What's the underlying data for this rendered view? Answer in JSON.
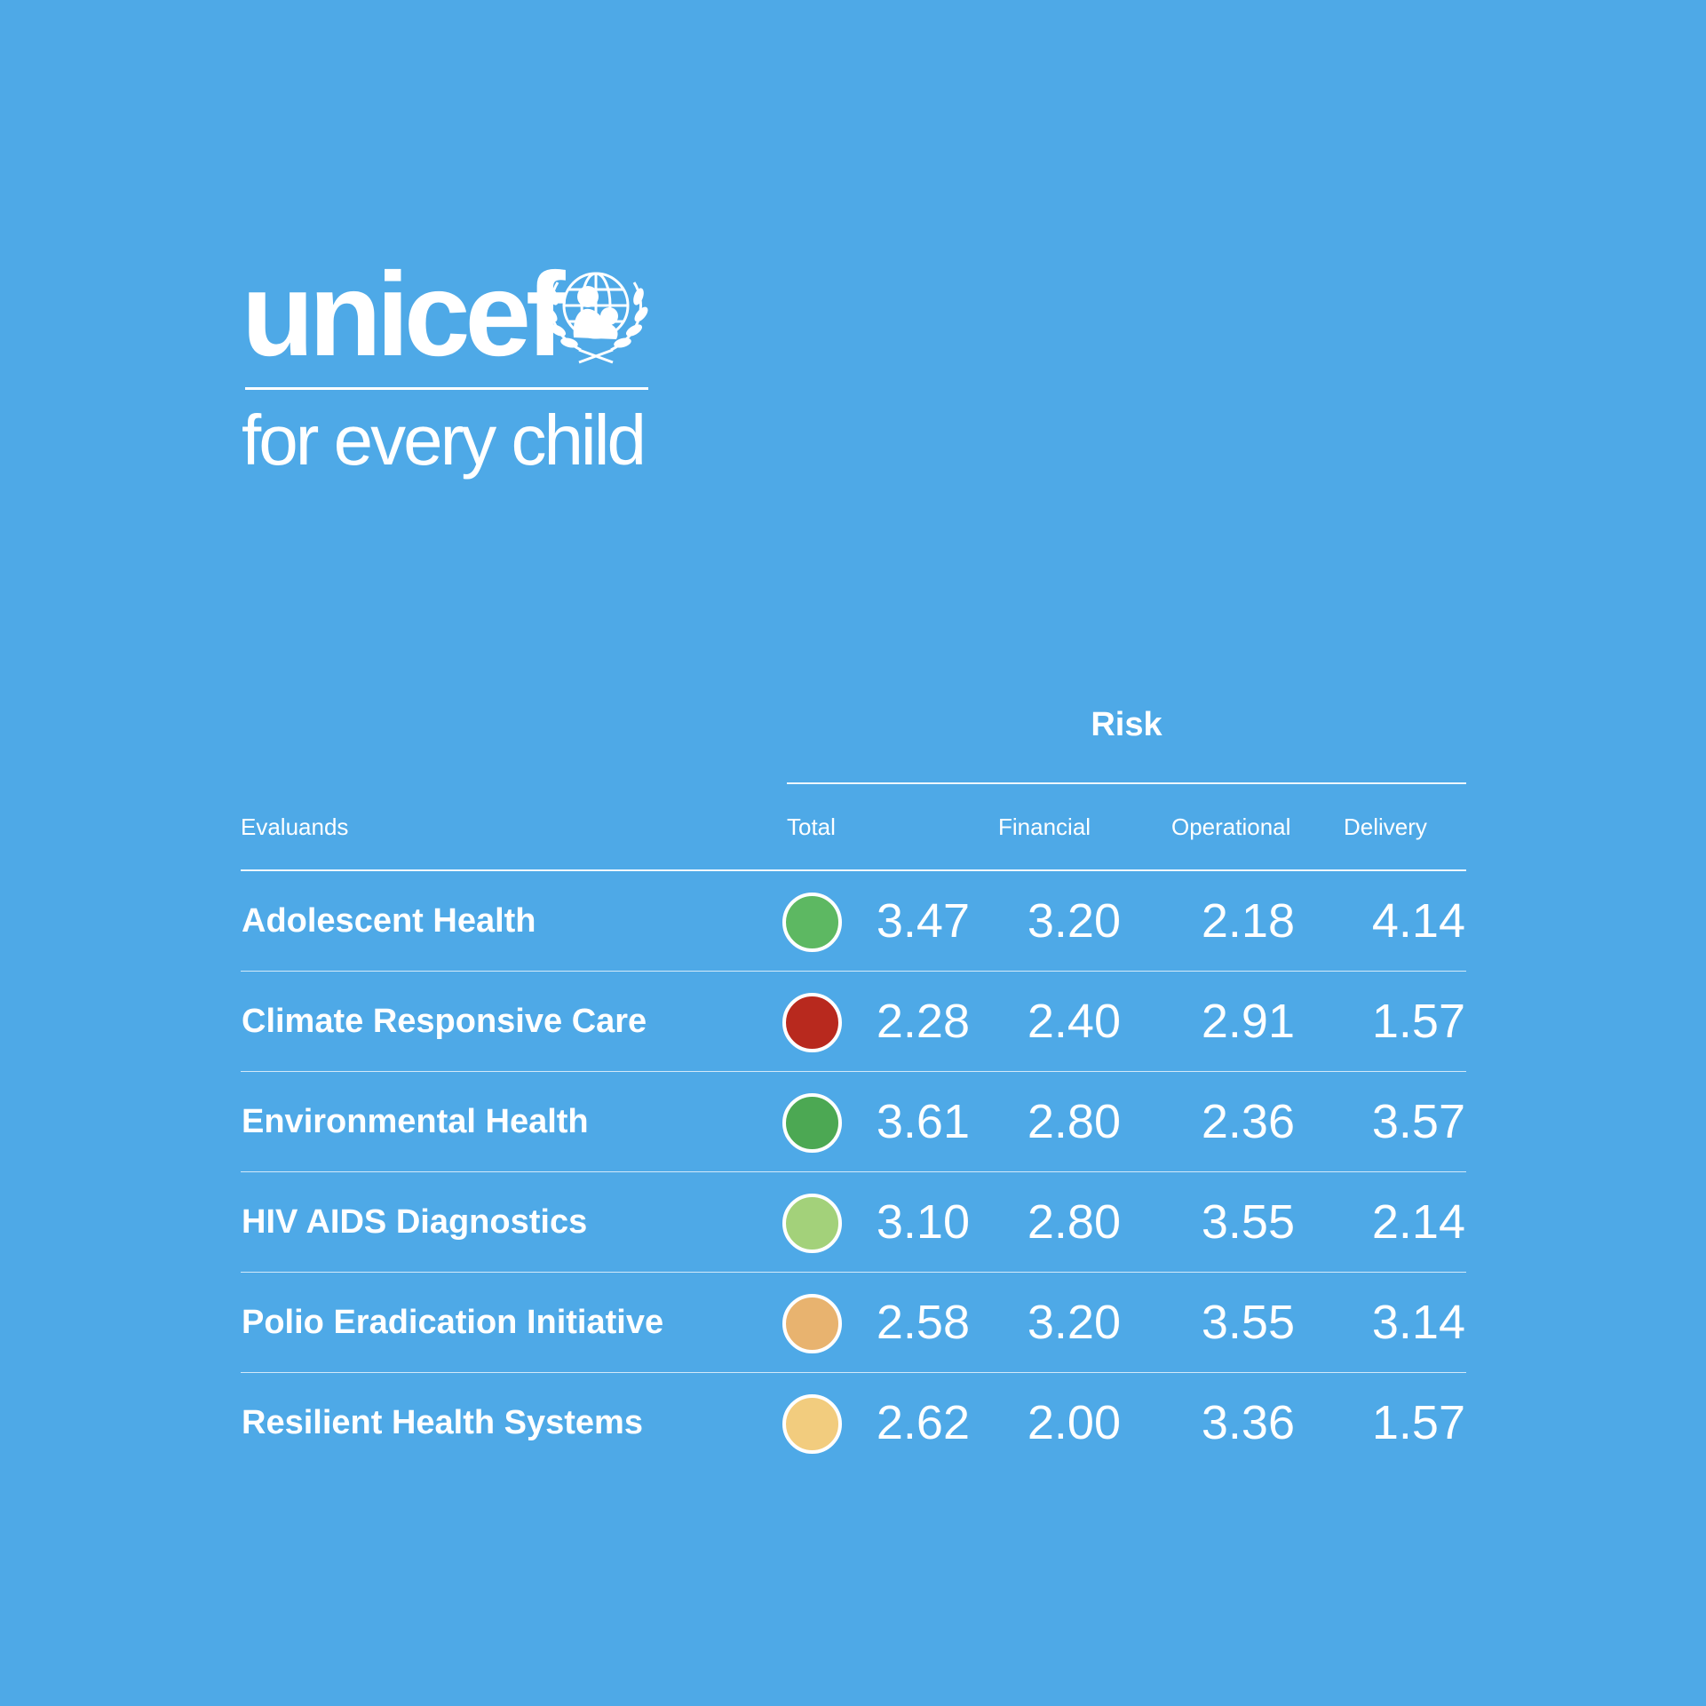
{
  "brand": {
    "wordmark": "unicef",
    "tagline": "for every child",
    "emblem_icon": "unicef-emblem-icon"
  },
  "colors": {
    "background": "#4EA9E7",
    "text": "#FFFFFF"
  },
  "chart_data": {
    "type": "table",
    "group_header": "Risk",
    "columns": [
      "Evaluands",
      "Total",
      "Financial",
      "Operational",
      "Delivery"
    ],
    "rows": [
      {
        "name": "Adolescent Health",
        "total": "3.47",
        "financial": "3.20",
        "operational": "2.18",
        "delivery": "4.14",
        "status_color": "#5DB862"
      },
      {
        "name": "Climate Responsive Care",
        "total": "2.28",
        "financial": "2.40",
        "operational": "2.91",
        "delivery": "1.57",
        "status_color": "#B8291E"
      },
      {
        "name": "Environmental Health",
        "total": "3.61",
        "financial": "2.80",
        "operational": "2.36",
        "delivery": "3.57",
        "status_color": "#4CA853"
      },
      {
        "name": "HIV AIDS Diagnostics",
        "total": "3.10",
        "financial": "2.80",
        "operational": "3.55",
        "delivery": "2.14",
        "status_color": "#A3D17A"
      },
      {
        "name": "Polio Eradication Initiative",
        "total": "2.58",
        "financial": "3.20",
        "operational": "3.55",
        "delivery": "3.14",
        "status_color": "#E8B36F"
      },
      {
        "name": "Resilient Health Systems",
        "total": "2.62",
        "financial": "2.00",
        "operational": "3.36",
        "delivery": "1.57",
        "status_color": "#F2CC7E"
      }
    ]
  }
}
